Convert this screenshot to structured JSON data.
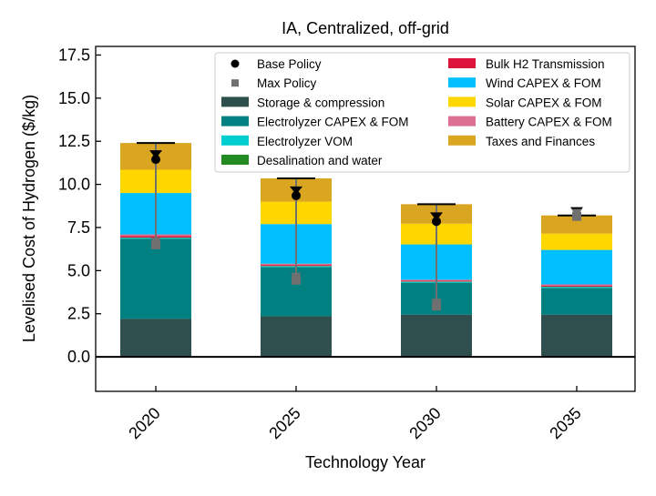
{
  "chart_data": {
    "type": "bar",
    "stacked": true,
    "title": "IA, Centralized, off-grid",
    "xlabel": "Technology Year",
    "ylabel": "Levelised Cost of Hydrogen ($/kg)",
    "ylim": [
      -2.0,
      18.0
    ],
    "yticks": [
      "0.0",
      "2.5",
      "5.0",
      "7.5",
      "10.0",
      "12.5",
      "15.0",
      "17.5"
    ],
    "ytick_values": [
      0,
      2.5,
      5,
      7.5,
      10,
      12.5,
      15,
      17.5
    ],
    "categories": [
      "2020",
      "2025",
      "2030",
      "2035"
    ],
    "legend_position": "top-right",
    "series": [
      {
        "name": "Storage & compression",
        "color": "#2f4f4f",
        "values": [
          2.2,
          2.35,
          2.45,
          2.45
        ]
      },
      {
        "name": "Electrolyzer CAPEX & FOM",
        "color": "#008080",
        "values": [
          4.65,
          2.85,
          1.85,
          1.55
        ]
      },
      {
        "name": "Electrolyzer VOM",
        "color": "#00ced1",
        "values": [
          0.05,
          0.05,
          0.05,
          0.05
        ]
      },
      {
        "name": "Desalination and water",
        "color": "#228b22",
        "values": [
          0.02,
          0.02,
          0.02,
          0.02
        ]
      },
      {
        "name": "Bulk H2 Transmission",
        "color": "#dc143c",
        "values": [
          0.08,
          0.06,
          0.05,
          0.05
        ]
      },
      {
        "name": "Battery CAPEX & FOM",
        "color": "#db7093",
        "values": [
          0.1,
          0.07,
          0.05,
          0.08
        ]
      },
      {
        "name": "Wind CAPEX & FOM",
        "color": "#00bfff",
        "values": [
          2.4,
          2.3,
          2.05,
          2.0
        ]
      },
      {
        "name": "Solar CAPEX & FOM",
        "color": "#ffd700",
        "values": [
          1.35,
          1.3,
          1.2,
          0.95
        ]
      },
      {
        "name": "Taxes and Finances",
        "color": "#daa520",
        "values": [
          1.55,
          1.35,
          1.13,
          1.05
        ]
      }
    ],
    "totals": [
      12.4,
      10.35,
      8.85,
      8.2
    ],
    "markers": [
      {
        "name": "Base Policy",
        "color": "#000000",
        "values": [
          11.45,
          9.35,
          7.85,
          8.15
        ]
      },
      {
        "name": "Max Policy",
        "color": "#707070",
        "values": [
          6.5,
          4.45,
          2.95,
          8.15
        ]
      }
    ],
    "legend_order": [
      "Base Policy",
      "Max Policy",
      "Storage & compression",
      "Electrolyzer CAPEX & FOM",
      "Electrolyzer VOM",
      "Desalination and water",
      "Bulk H2 Transmission",
      "Wind CAPEX & FOM",
      "Solar CAPEX & FOM",
      "Battery CAPEX & FOM",
      "Taxes and Finances"
    ]
  }
}
